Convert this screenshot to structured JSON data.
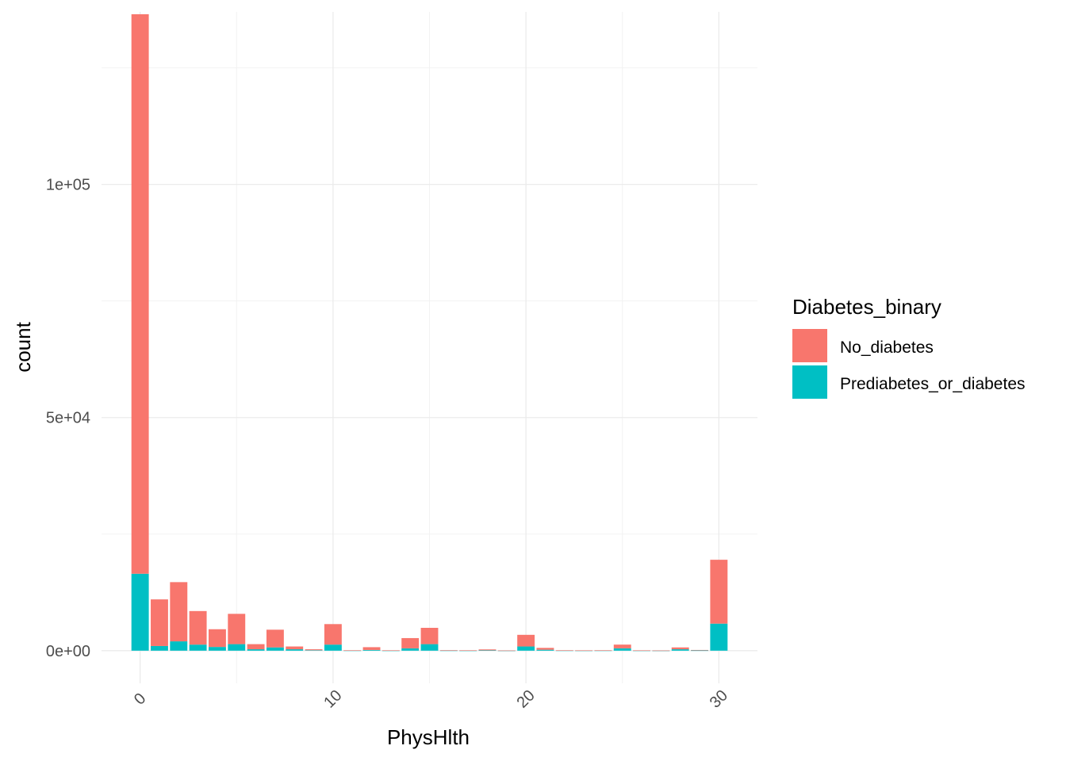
{
  "chart_data": {
    "type": "bar",
    "stacked": true,
    "xlabel": "PhysHlth",
    "ylabel": "count",
    "x_ticks": [
      0,
      10,
      20,
      30
    ],
    "y_ticks": [
      0,
      50000,
      100000
    ],
    "y_tick_labels": [
      "0e+00",
      "5e+04",
      "1e+05"
    ],
    "xlim": [
      -2,
      32
    ],
    "ylim": [
      -7000,
      137000
    ],
    "grid": true,
    "legend_position": "right",
    "legend_title": "Diabetes_binary",
    "x": [
      0,
      1,
      2,
      3,
      4,
      5,
      6,
      7,
      8,
      9,
      10,
      11,
      12,
      13,
      14,
      15,
      16,
      17,
      18,
      19,
      20,
      21,
      22,
      23,
      24,
      25,
      26,
      27,
      28,
      29,
      30
    ],
    "series": [
      {
        "name": "Prediabetes_or_diabetes",
        "color": "#00BFC4",
        "values": [
          16500,
          1000,
          2000,
          1300,
          800,
          1400,
          300,
          700,
          300,
          100,
          1300,
          30,
          150,
          20,
          500,
          1400,
          30,
          20,
          70,
          10,
          900,
          200,
          30,
          20,
          30,
          500,
          20,
          10,
          300,
          50,
          5800
        ]
      },
      {
        "name": "No_diabetes",
        "color": "#F8766D",
        "values": [
          120000,
          10000,
          12700,
          7200,
          3800,
          6500,
          1100,
          3800,
          600,
          200,
          4400,
          50,
          600,
          50,
          2200,
          3500,
          70,
          50,
          200,
          30,
          2500,
          400,
          50,
          40,
          50,
          800,
          40,
          30,
          400,
          100,
          13700
        ]
      }
    ]
  }
}
